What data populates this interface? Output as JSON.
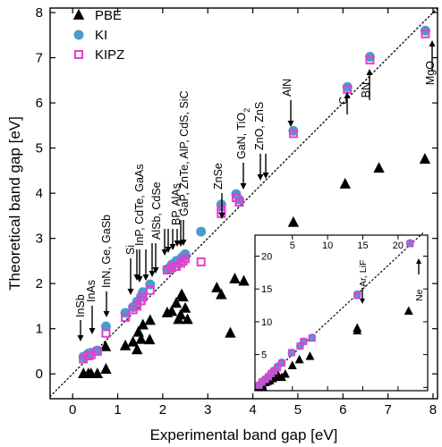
{
  "chart_data": [
    {
      "type": "scatter",
      "xlabel": "Experimental band gap [eV]",
      "ylabel": "Theoretical band gap [eV]",
      "xlim": [
        -0.5,
        8.1
      ],
      "ylim": [
        -0.55,
        8.1
      ],
      "x_ticks": [
        0,
        1,
        2,
        3,
        4,
        5,
        6,
        7,
        8
      ],
      "y_ticks": [
        0,
        1,
        2,
        3,
        4,
        5,
        6,
        7,
        8
      ],
      "grid": false,
      "legend": "top-left",
      "reference_line": {
        "style": "dotted",
        "from": [
          -0.5,
          -0.5
        ],
        "to": [
          8.1,
          8.1
        ]
      },
      "series": [
        {
          "name": "PBE",
          "marker": "triangle",
          "color": "#000000",
          "points": [
            [
              0.24,
              0.0
            ],
            [
              0.35,
              0.0
            ],
            [
              0.41,
              0.0
            ],
            [
              0.55,
              0.0
            ],
            [
              0.74,
              0.1
            ],
            [
              0.73,
              0.6
            ],
            [
              1.17,
              0.62
            ],
            [
              1.34,
              0.7
            ],
            [
              1.43,
              0.53
            ],
            [
              1.46,
              0.92
            ],
            [
              1.52,
              0.76
            ],
            [
              1.56,
              1.08
            ],
            [
              1.72,
              1.18
            ],
            [
              1.71,
              0.75
            ],
            [
              2.1,
              1.35
            ],
            [
              2.2,
              1.38
            ],
            [
              2.3,
              1.56
            ],
            [
              2.35,
              1.2
            ],
            [
              2.4,
              1.3
            ],
            [
              2.42,
              1.75
            ],
            [
              2.45,
              1.7
            ],
            [
              2.5,
              1.45
            ],
            [
              2.55,
              1.2
            ],
            [
              3.2,
              1.9
            ],
            [
              3.3,
              1.75
            ],
            [
              3.5,
              0.9
            ],
            [
              3.6,
              2.1
            ],
            [
              3.8,
              2.05
            ],
            [
              4.9,
              3.35
            ],
            [
              6.05,
              4.2
            ],
            [
              6.8,
              4.55
            ],
            [
              7.82,
              4.75
            ]
          ]
        },
        {
          "name": "KI",
          "marker": "circle",
          "color": "#4a9ccc",
          "points": [
            [
              0.24,
              0.38
            ],
            [
              0.35,
              0.45
            ],
            [
              0.41,
              0.47
            ],
            [
              0.55,
              0.52
            ],
            [
              0.74,
              1.05
            ],
            [
              1.17,
              1.35
            ],
            [
              1.34,
              1.48
            ],
            [
              1.43,
              1.6
            ],
            [
              1.52,
              1.72
            ],
            [
              1.56,
              1.81
            ],
            [
              1.72,
              1.98
            ],
            [
              2.1,
              2.32
            ],
            [
              2.2,
              2.42
            ],
            [
              2.3,
              2.5
            ],
            [
              2.4,
              2.55
            ],
            [
              2.45,
              2.6
            ],
            [
              2.5,
              2.65
            ],
            [
              2.85,
              3.15
            ],
            [
              3.3,
              3.75
            ],
            [
              3.63,
              3.98
            ],
            [
              3.7,
              3.86
            ],
            [
              4.9,
              5.38
            ],
            [
              6.1,
              6.35
            ],
            [
              6.6,
              7.02
            ],
            [
              7.83,
              7.6
            ]
          ]
        },
        {
          "name": "KIPZ",
          "marker": "open-square",
          "color": "#e040d0",
          "points": [
            [
              0.24,
              0.33
            ],
            [
              0.35,
              0.4
            ],
            [
              0.41,
              0.42
            ],
            [
              0.55,
              0.5
            ],
            [
              0.74,
              0.9
            ],
            [
              1.17,
              1.25
            ],
            [
              1.34,
              1.42
            ],
            [
              1.43,
              1.5
            ],
            [
              1.52,
              1.62
            ],
            [
              1.56,
              1.7
            ],
            [
              1.72,
              1.85
            ],
            [
              2.1,
              2.3
            ],
            [
              2.2,
              2.35
            ],
            [
              2.3,
              2.38
            ],
            [
              2.4,
              2.45
            ],
            [
              2.45,
              2.5
            ],
            [
              2.5,
              2.55
            ],
            [
              2.85,
              2.48
            ],
            [
              3.3,
              3.55
            ],
            [
              3.3,
              3.65
            ],
            [
              3.63,
              3.9
            ],
            [
              3.7,
              3.8
            ],
            [
              4.9,
              5.32
            ],
            [
              6.1,
              6.3
            ],
            [
              6.6,
              6.95
            ],
            [
              7.83,
              7.53
            ]
          ]
        }
      ],
      "annotations": [
        {
          "text": "InSb",
          "x": 0.24
        },
        {
          "text": "InAs",
          "x": 0.41
        },
        {
          "text": "InN, Ge, GaSb",
          "x": 0.74
        },
        {
          "text": "Si",
          "x": 1.17
        },
        {
          "text": "InP, CdTe, GaAs",
          "x": 1.43
        },
        {
          "text": "AlSb, CdSe",
          "x": 1.72
        },
        {
          "text": "BP, AlAs",
          "x": 2.2
        },
        {
          "text": "GaP, ZnTe, AlP, CdS, SiC",
          "x": 2.45
        },
        {
          "text": "ZnSe",
          "x": 2.82
        },
        {
          "text": "GaN, TiO",
          "subscript": "2",
          "x": 3.35
        },
        {
          "text": "ZnO, ZnS",
          "x": 3.7
        },
        {
          "text": "AlN",
          "x": 4.9
        },
        {
          "text": "C",
          "x": 6.1
        },
        {
          "text": "BN",
          "x": 6.6
        },
        {
          "text": "MgO",
          "x": 7.83
        }
      ]
    },
    {
      "type": "scatter",
      "name": "inset",
      "xlim": [
        -0.3,
        24.2
      ],
      "ylim": [
        -0.5,
        23.2
      ],
      "x_ticks": [
        5,
        10,
        15,
        20
      ],
      "y_ticks": [
        0,
        5,
        10,
        15,
        20
      ],
      "reference_line": {
        "style": "dotted",
        "from": [
          0,
          0
        ],
        "to": [
          23.5,
          23.5
        ]
      },
      "series": [
        {
          "name": "PBE",
          "marker": "triangle",
          "color": "#000000",
          "points": [
            [
              0.2,
              0.0
            ],
            [
              0.5,
              0.0
            ],
            [
              0.8,
              0.1
            ],
            [
              1.2,
              0.7
            ],
            [
              1.5,
              0.9
            ],
            [
              1.8,
              1.0
            ],
            [
              2.2,
              1.3
            ],
            [
              2.5,
              1.5
            ],
            [
              3.0,
              1.8
            ],
            [
              3.5,
              1.5
            ],
            [
              4.0,
              2.0
            ],
            [
              5.0,
              3.3
            ],
            [
              6.0,
              4.2
            ],
            [
              7.5,
              4.7
            ],
            [
              14.2,
              9.0
            ],
            [
              14.2,
              8.6
            ],
            [
              21.5,
              11.6
            ]
          ]
        },
        {
          "name": "KI",
          "marker": "circle",
          "color": "#4a9ccc",
          "points": [
            [
              0.3,
              0.4
            ],
            [
              0.7,
              0.9
            ],
            [
              1.2,
              1.3
            ],
            [
              1.6,
              1.7
            ],
            [
              2.0,
              2.2
            ],
            [
              2.4,
              2.6
            ],
            [
              2.9,
              3.2
            ],
            [
              3.5,
              3.8
            ],
            [
              4.9,
              5.3
            ],
            [
              6.1,
              6.3
            ],
            [
              6.6,
              7.0
            ],
            [
              7.8,
              7.6
            ],
            [
              14.2,
              14.2
            ],
            [
              21.7,
              22.0
            ]
          ]
        },
        {
          "name": "KIPZ",
          "marker": "open-square",
          "color": "#e040d0",
          "points": [
            [
              0.3,
              0.3
            ],
            [
              0.7,
              0.8
            ],
            [
              1.2,
              1.2
            ],
            [
              1.6,
              1.6
            ],
            [
              2.0,
              2.1
            ],
            [
              2.4,
              2.5
            ],
            [
              2.9,
              3.0
            ],
            [
              3.5,
              3.7
            ],
            [
              4.9,
              5.3
            ],
            [
              6.1,
              6.3
            ],
            [
              6.6,
              7.0
            ],
            [
              7.8,
              7.5
            ],
            [
              14.2,
              14.0
            ],
            [
              21.7,
              21.9
            ]
          ]
        }
      ],
      "annotations": [
        {
          "text": "Ar, LiF",
          "x": 14.2
        },
        {
          "text": "Ne",
          "x": 21.7
        }
      ]
    }
  ]
}
